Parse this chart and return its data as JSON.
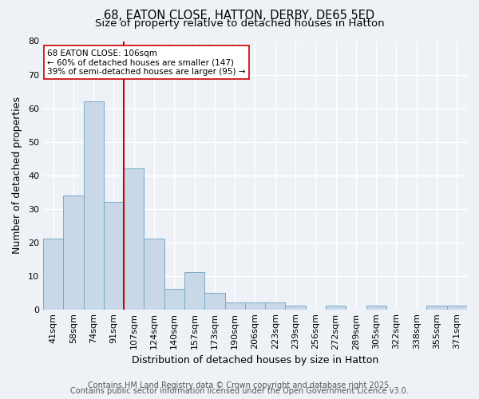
{
  "title1": "68, EATON CLOSE, HATTON, DERBY, DE65 5ED",
  "title2": "Size of property relative to detached houses in Hatton",
  "xlabel": "Distribution of detached houses by size in Hatton",
  "ylabel": "Number of detached properties",
  "categories": [
    "41sqm",
    "58sqm",
    "74sqm",
    "91sqm",
    "107sqm",
    "124sqm",
    "140sqm",
    "157sqm",
    "173sqm",
    "190sqm",
    "206sqm",
    "223sqm",
    "239sqm",
    "256sqm",
    "272sqm",
    "289sqm",
    "305sqm",
    "322sqm",
    "338sqm",
    "355sqm",
    "371sqm"
  ],
  "values": [
    21,
    34,
    62,
    32,
    42,
    21,
    6,
    11,
    5,
    2,
    2,
    2,
    1,
    0,
    1,
    0,
    1,
    0,
    0,
    1,
    1
  ],
  "bar_color": "#c8d8e8",
  "bar_edge_color": "#7aaac8",
  "vline_index": 4,
  "vline_color": "#cc0000",
  "annotation_line1": "68 EATON CLOSE: 106sqm",
  "annotation_line2": "← 60% of detached houses are smaller (147)",
  "annotation_line3": "39% of semi-detached houses are larger (95) →",
  "annotation_box_color": "#ffffff",
  "annotation_box_edge": "#cc0000",
  "ylim": [
    0,
    80
  ],
  "yticks": [
    0,
    10,
    20,
    30,
    40,
    50,
    60,
    70,
    80
  ],
  "footer1": "Contains HM Land Registry data © Crown copyright and database right 2025.",
  "footer2": "Contains public sector information licensed under the Open Government Licence v3.0.",
  "bg_color": "#eef2f7",
  "plot_bg_color": "#eef2f7",
  "grid_color": "#ffffff",
  "title1_fontsize": 10.5,
  "title2_fontsize": 9.5,
  "axis_label_fontsize": 9,
  "tick_fontsize": 8,
  "annotation_fontsize": 7.5,
  "footer_fontsize": 7
}
